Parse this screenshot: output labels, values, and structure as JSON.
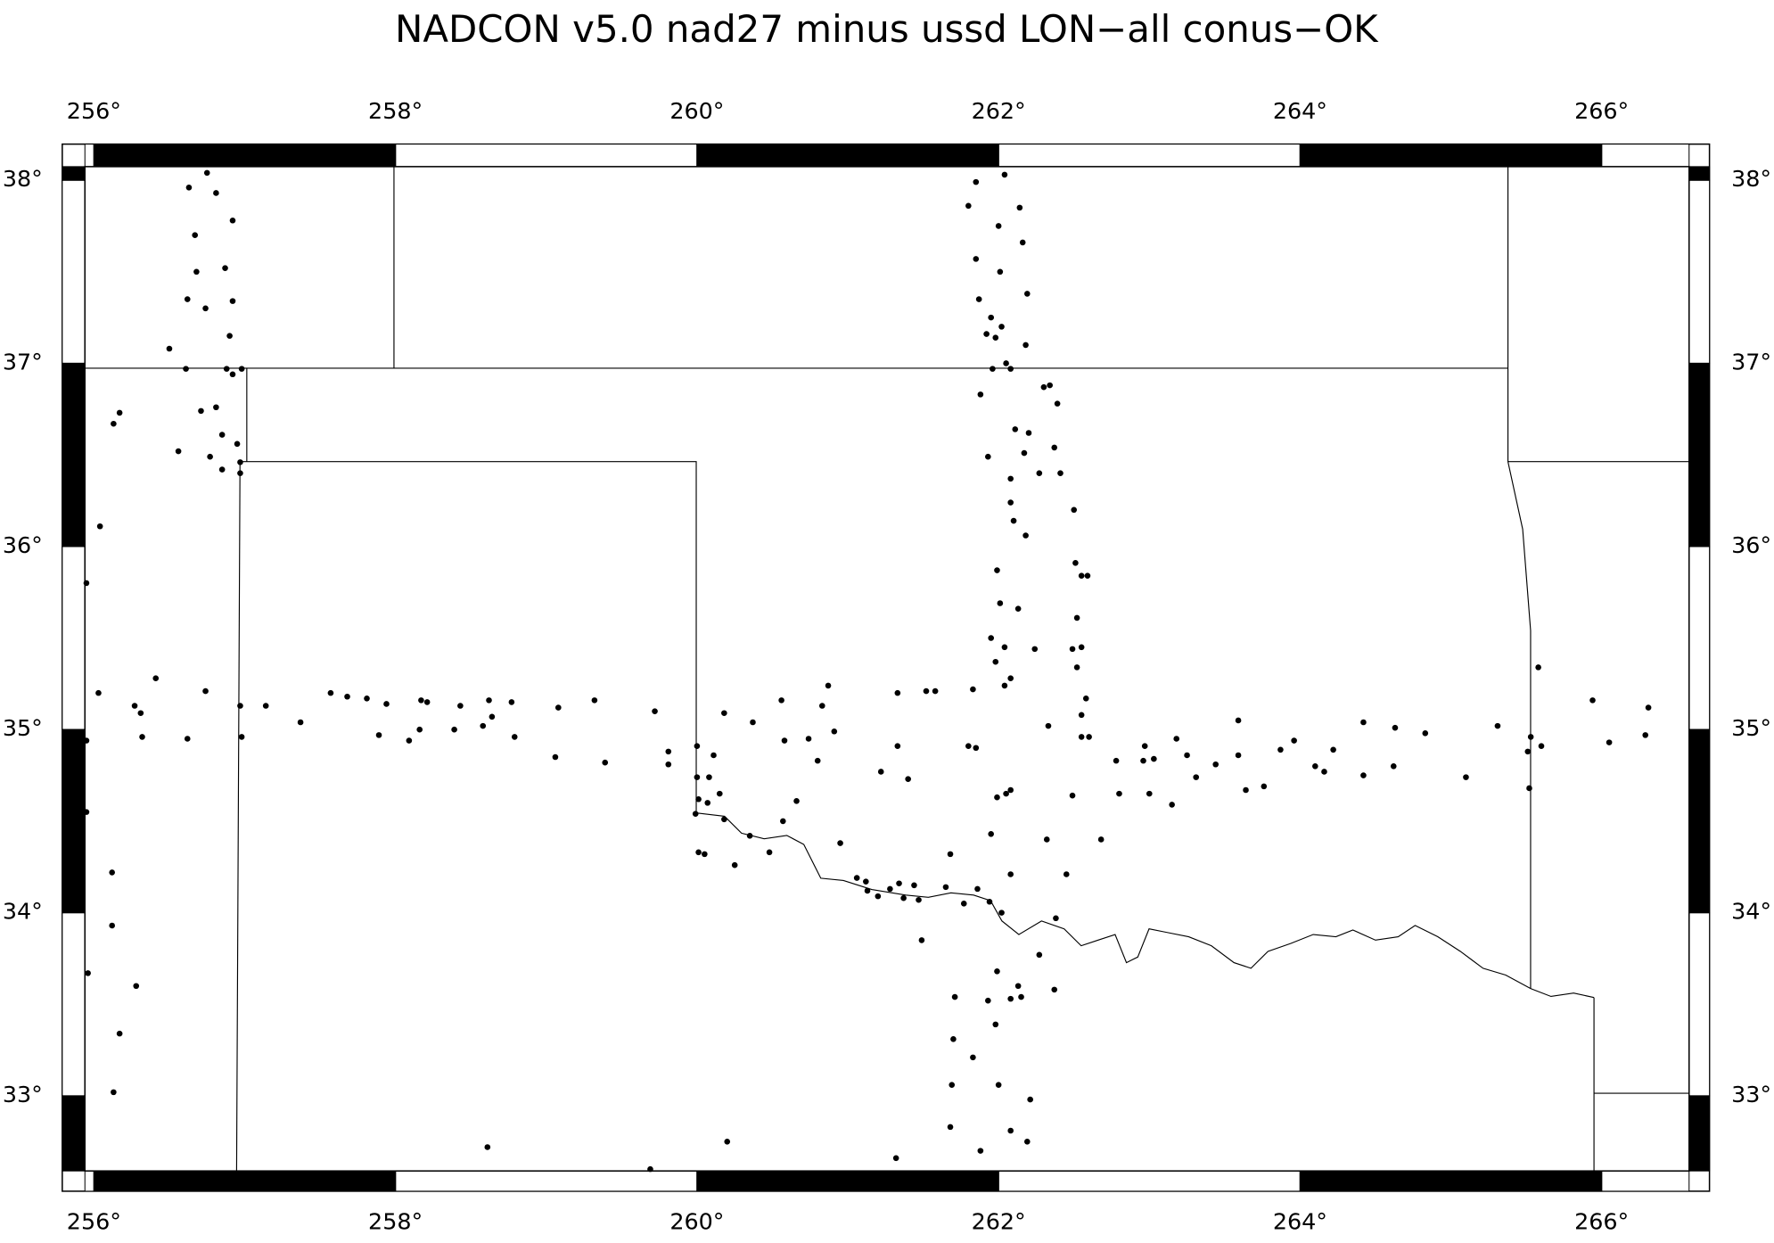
{
  "chart_data": {
    "type": "scatter",
    "title": "NADCON v5.0 nad27 minus ussd LON−all  conus−OK",
    "color": "#000000",
    "xlim": [
      255.94,
      266.58
    ],
    "ylim": [
      32.59,
      38.074
    ],
    "xticks": [
      {
        "value": 256,
        "label": "256°"
      },
      {
        "value": 258,
        "label": "258°"
      },
      {
        "value": 260,
        "label": "260°"
      },
      {
        "value": 262,
        "label": "262°"
      },
      {
        "value": 264,
        "label": "264°"
      },
      {
        "value": 266,
        "label": "266°"
      }
    ],
    "yticks": [
      {
        "value": 33,
        "label": "33°"
      },
      {
        "value": 34,
        "label": "34°"
      },
      {
        "value": 35,
        "label": "35°"
      },
      {
        "value": 36,
        "label": "36°"
      },
      {
        "value": 37,
        "label": "37°"
      },
      {
        "value": 38,
        "label": "38°"
      }
    ],
    "x": [
      256.63,
      256.75,
      256.81,
      256.67,
      256.92,
      256.87,
      256.68,
      256.62,
      256.92,
      256.74,
      256.9,
      256.5,
      256.61,
      256.88,
      256.98,
      256.92,
      256.71,
      256.81,
      256.17,
      256.13,
      256.85,
      256.56,
      256.77,
      256.95,
      256.97,
      256.85,
      256.97,
      256.04,
      255.95,
      255.95,
      255.95,
      255.96,
      256.12,
      256.12,
      256.28,
      256.17,
      256.13,
      256.03,
      256.27,
      256.31,
      256.32,
      256.41,
      256.62,
      256.74,
      256.97,
      256.98,
      257.14,
      257.37,
      257.57,
      257.68,
      257.81,
      257.94,
      257.89,
      258.09,
      258.16,
      258.17,
      258.21,
      258.39,
      258.43,
      258.58,
      258.62,
      258.64,
      258.77,
      258.79,
      259.06,
      259.08,
      259.32,
      259.39,
      259.72,
      259.81,
      259.81,
      260.0,
      260.0,
      260.01,
      260.08,
      260.11,
      259.99,
      260.01,
      260.05,
      260.07,
      260.15,
      260.18,
      260.18,
      260.25,
      260.37,
      260.35,
      260.48,
      260.56,
      260.57,
      260.58,
      260.66,
      260.74,
      260.8,
      260.83,
      260.87,
      260.91,
      260.95,
      261.06,
      261.12,
      261.13,
      261.22,
      261.2,
      261.28,
      261.34,
      261.33,
      261.33,
      261.37,
      261.4,
      261.44,
      261.47,
      261.52,
      261.58,
      261.49,
      261.68,
      261.65,
      261.77,
      261.8,
      261.83,
      261.85,
      261.86,
      261.71,
      261.7,
      261.83,
      261.69,
      261.68,
      261.88,
      262.0,
      262.08,
      262.19,
      262.21,
      261.98,
      261.93,
      261.99,
      262.08,
      262.13,
      262.15,
      262.27,
      262.37,
      262.38,
      261.94,
      262.02,
      262.08,
      262.05,
      262.08,
      261.99,
      261.95,
      262.32,
      262.45,
      262.49,
      262.68,
      262.55,
      262.6,
      262.33,
      262.78,
      262.8,
      262.96,
      262.97,
      263.0,
      263.03,
      263.15,
      263.18,
      263.25,
      263.31,
      263.44,
      263.59,
      263.59,
      263.64,
      263.76,
      263.87,
      263.96,
      264.1,
      264.16,
      264.22,
      264.42,
      264.42,
      264.63,
      264.62,
      264.83,
      265.1,
      265.31,
      265.52,
      265.51,
      265.58,
      265.53,
      265.6,
      265.94,
      266.05,
      266.29,
      266.31,
      261.85,
      261.8,
      262.04,
      262.14,
      262.0,
      262.16,
      261.85,
      262.01,
      261.87,
      262.19,
      261.95,
      261.92,
      261.98,
      262.02,
      262.18,
      262.05,
      262.08,
      261.96,
      261.88,
      262.3,
      262.34,
      262.39,
      262.11,
      262.2,
      261.93,
      262.37,
      262.17,
      262.27,
      262.41,
      262.08,
      262.08,
      262.5,
      262.1,
      262.18,
      262.51,
      261.99,
      262.55,
      262.59,
      262.13,
      262.01,
      262.52,
      261.95,
      262.04,
      262.24,
      262.49,
      262.55,
      261.98,
      262.08,
      262.04,
      262.52,
      262.58,
      262.55,
      258.61,
      259.69,
      260.2,
      261.32
    ],
    "values": [
      37.96,
      38.04,
      37.93,
      37.7,
      37.78,
      37.52,
      37.5,
      37.35,
      37.34,
      37.3,
      37.15,
      37.08,
      36.97,
      36.97,
      36.97,
      36.94,
      36.74,
      36.76,
      36.73,
      36.67,
      36.61,
      36.52,
      36.49,
      36.56,
      36.46,
      36.42,
      36.4,
      36.11,
      35.8,
      34.94,
      34.55,
      33.67,
      34.22,
      33.93,
      33.6,
      33.34,
      33.02,
      35.2,
      35.13,
      35.09,
      34.96,
      35.28,
      34.95,
      35.21,
      35.13,
      34.96,
      35.13,
      35.04,
      35.2,
      35.18,
      35.17,
      35.14,
      34.97,
      34.94,
      35.0,
      35.16,
      35.15,
      35.0,
      35.13,
      35.02,
      35.16,
      35.07,
      35.15,
      34.96,
      34.85,
      35.12,
      35.16,
      34.82,
      35.1,
      34.88,
      34.81,
      34.91,
      34.74,
      34.62,
      34.74,
      34.86,
      34.54,
      34.33,
      34.32,
      34.6,
      34.65,
      35.09,
      34.51,
      34.26,
      35.04,
      34.42,
      34.33,
      35.16,
      34.5,
      34.94,
      34.61,
      34.95,
      34.83,
      35.13,
      35.24,
      34.99,
      34.38,
      34.19,
      34.17,
      34.12,
      34.77,
      34.09,
      34.13,
      34.16,
      34.91,
      35.2,
      34.08,
      34.73,
      34.15,
      34.07,
      35.21,
      35.21,
      33.85,
      34.32,
      34.14,
      34.05,
      34.91,
      35.22,
      34.9,
      34.13,
      33.54,
      33.31,
      33.21,
      33.06,
      32.83,
      32.7,
      33.06,
      32.81,
      32.75,
      32.98,
      33.39,
      33.52,
      33.68,
      33.53,
      33.6,
      33.54,
      33.77,
      33.58,
      33.97,
      34.06,
      34.0,
      34.21,
      34.65,
      34.67,
      34.63,
      34.43,
      34.4,
      34.21,
      34.64,
      34.4,
      34.96,
      34.96,
      35.02,
      34.83,
      34.65,
      34.83,
      34.91,
      34.65,
      34.84,
      34.59,
      34.95,
      34.86,
      34.74,
      34.81,
      35.05,
      34.86,
      34.67,
      34.69,
      34.89,
      34.94,
      34.8,
      34.77,
      34.89,
      35.04,
      34.75,
      35.01,
      34.8,
      34.98,
      34.74,
      35.02,
      34.68,
      34.88,
      35.34,
      34.96,
      34.91,
      35.16,
      34.93,
      34.97,
      35.12,
      37.99,
      37.86,
      38.03,
      37.85,
      37.75,
      37.66,
      37.57,
      37.5,
      37.35,
      37.38,
      37.25,
      37.16,
      37.14,
      37.2,
      37.1,
      37.0,
      36.97,
      36.97,
      36.83,
      36.87,
      36.88,
      36.78,
      36.64,
      36.62,
      36.49,
      36.54,
      36.51,
      36.4,
      36.4,
      36.37,
      36.24,
      36.2,
      36.14,
      36.06,
      35.91,
      35.87,
      35.84,
      35.84,
      35.66,
      35.69,
      35.61,
      35.5,
      35.45,
      35.44,
      35.44,
      35.45,
      35.37,
      35.28,
      35.24,
      35.34,
      35.17,
      35.08,
      32.72,
      32.6,
      32.75,
      32.66
    ]
  }
}
